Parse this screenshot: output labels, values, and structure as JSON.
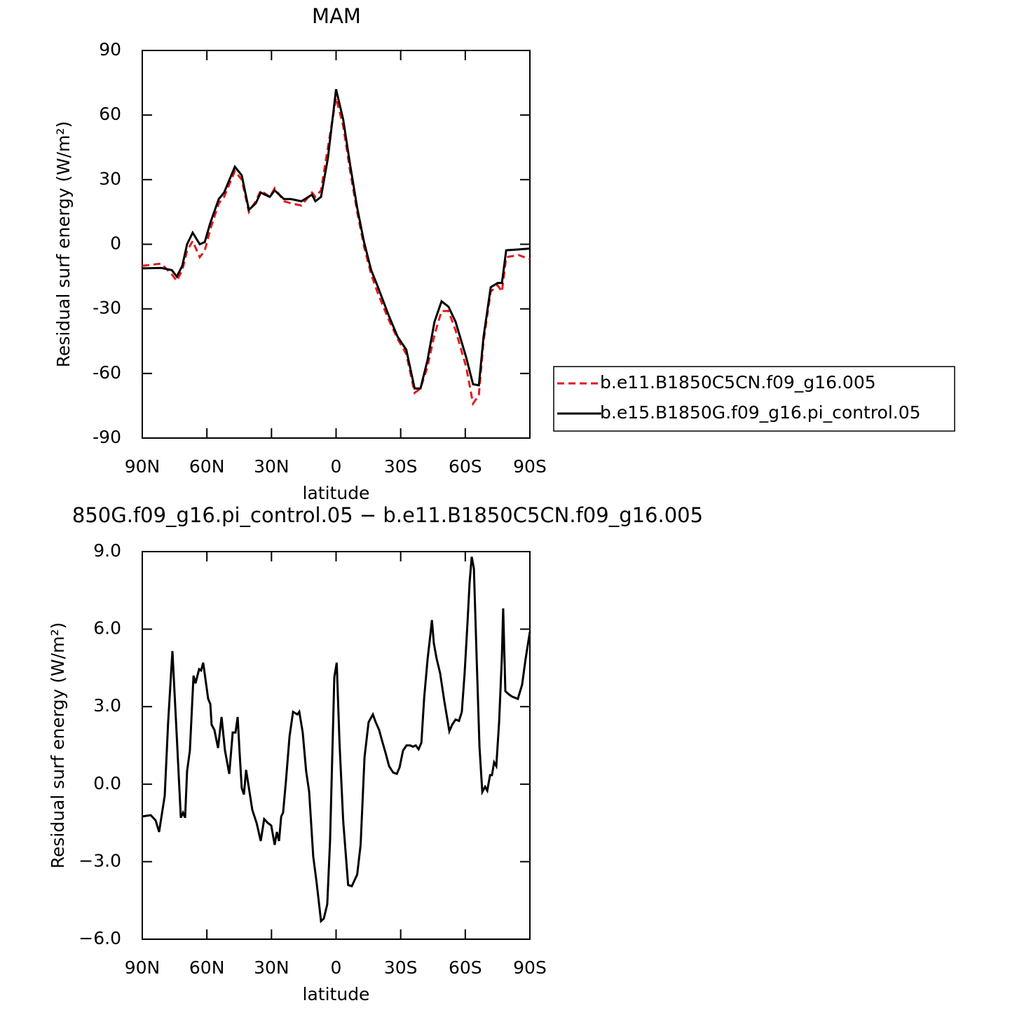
{
  "chart_data": [
    {
      "type": "line",
      "title": "MAM",
      "xlabel": "latitude",
      "ylabel": "Residual surf energy (W/m²)",
      "xlim": [
        90,
        -90
      ],
      "xticks": [
        {
          "value": 90,
          "label": "90N"
        },
        {
          "value": 60,
          "label": "60N"
        },
        {
          "value": 30,
          "label": "30N"
        },
        0,
        {
          "value": -30,
          "label": "30S"
        },
        {
          "value": -60,
          "label": "60S"
        },
        {
          "value": -90,
          "label": "90S"
        }
      ],
      "ylim": [
        -90,
        90
      ],
      "yticks": [
        -90,
        -60,
        -30,
        0,
        30,
        60,
        90
      ],
      "legend": "right",
      "x": [
        90,
        81.2,
        76.3,
        74,
        71.4,
        69.2,
        66.6,
        63.3,
        61,
        58.4,
        54.5,
        52,
        47,
        43.8,
        40.5,
        37.3,
        35,
        30.8,
        28.5,
        24.2,
        21,
        16.1,
        11.2,
        9.6,
        7,
        3.8,
        0,
        -3.3,
        -6.5,
        -9.8,
        -13,
        -16.3,
        -19.5,
        -24.4,
        -28.6,
        -32.6,
        -36.5,
        -39.2,
        -42.4,
        -45.7,
        -49,
        -52.2,
        -55.5,
        -60.4,
        -63.6,
        -66.3,
        -68.5,
        -71.8,
        -75,
        -77,
        -79,
        -84.8,
        -90
      ],
      "series": [
        {
          "name": "b.e11.B1850C5CN.f09_g16.005",
          "color": "#e41a1c",
          "line_style": "dashed",
          "values": [
            -10,
            -9,
            -14,
            -17,
            -12,
            -3,
            1.5,
            -6,
            -3,
            7,
            19,
            22,
            34,
            30,
            15,
            20,
            25,
            22,
            26,
            20,
            19,
            18,
            24,
            22,
            25,
            45,
            68,
            55,
            34,
            15,
            -1,
            -14,
            -23,
            -35,
            -44,
            -51,
            -69,
            -67,
            -57,
            -42,
            -31,
            -31,
            -40,
            -57,
            -74,
            -70,
            -45,
            -22,
            -19,
            -22,
            -6,
            -5,
            -7
          ]
        },
        {
          "name": "b.e15.B1850G.f09_g16.pi_control.05",
          "color": "#000000",
          "line_style": "solid",
          "values": [
            -11.2,
            -11,
            -12,
            -15,
            -10,
            0,
            5.4,
            0,
            1,
            10,
            21,
            24,
            36,
            32,
            16,
            19,
            24,
            22,
            25,
            21,
            21,
            20,
            23,
            20,
            22,
            40,
            72,
            58,
            37,
            17,
            1,
            -12,
            -20,
            -33,
            -43,
            -49,
            -67,
            -67,
            -54,
            -36,
            -26.5,
            -29,
            -36,
            -52.5,
            -65,
            -65.5,
            -43,
            -20,
            -18,
            -18,
            -2.8,
            -2.4,
            -2
          ]
        }
      ]
    },
    {
      "type": "line",
      "title": "850G.f09_g16.pi_control.05 − b.e11.B1850C5CN.f09_g16.005",
      "xlabel": "latitude",
      "ylabel": "Residual surf energy (W/m²)",
      "xlim": [
        90,
        -90
      ],
      "xticks": [
        {
          "value": 90,
          "label": "90N"
        },
        {
          "value": 60,
          "label": "60N"
        },
        {
          "value": 30,
          "label": "30N"
        },
        0,
        {
          "value": -30,
          "label": "30S"
        },
        {
          "value": -60,
          "label": "60S"
        },
        {
          "value": -90,
          "label": "90S"
        }
      ],
      "ylim": [
        -6,
        9
      ],
      "yticks": [
        {
          "value": -6,
          "label": "−6.0"
        },
        {
          "value": -3,
          "label": "−3.0"
        },
        {
          "value": 0,
          "label": "0.0"
        },
        {
          "value": 3,
          "label": "3.0"
        },
        {
          "value": 6,
          "label": "6.0"
        },
        {
          "value": 9,
          "label": "9.0"
        }
      ],
      "color": "#000000",
      "x": [
        90,
        86.1,
        83.8,
        82.2,
        79.6,
        78,
        76,
        74,
        72.1,
        71.1,
        70.1,
        69.2,
        67.9,
        66.2,
        65.3,
        63.6,
        62.7,
        61.7,
        59.4,
        58.4,
        57.8,
        56.5,
        54.8,
        53.2,
        51.6,
        49.6,
        48,
        46.7,
        45.7,
        44.8,
        43.8,
        42.8,
        41.8,
        40.2,
        38.9,
        36.9,
        35,
        33.4,
        31.7,
        30.1,
        28.5,
        27.5,
        26.5,
        25.5,
        24.6,
        23.3,
        21.6,
        20,
        18,
        17.1,
        15.5,
        13.9,
        12.5,
        10.6,
        9,
        7,
        5.7,
        4.1,
        2.8,
        0.8,
        -0.3,
        -1.6,
        -3.3,
        -5.6,
        -7.3,
        -9.8,
        -11.4,
        -13.2,
        -15.1,
        -17.1,
        -18.4,
        -20,
        -21.3,
        -23,
        -24.6,
        -26.5,
        -28.2,
        -29.5,
        -31.1,
        -32.7,
        -34.4,
        -35.7,
        -37,
        -38.3,
        -39.6,
        -40.9,
        -42.5,
        -43.8,
        -44.5,
        -45.4,
        -46.7,
        -48.3,
        -50.3,
        -52.6,
        -53.9,
        -55.5,
        -57.1,
        -58.4,
        -59.7,
        -61,
        -62,
        -63,
        -64,
        -65.3,
        -66.6,
        -67.9,
        -69.2,
        -70.2,
        -71.5,
        -72.4,
        -73.4,
        -74.4,
        -75.7,
        -77,
        -77.6,
        -78.6,
        -79.9,
        -81.5,
        -84.4,
        -86.4,
        -88,
        -90
      ],
      "values": [
        -1.25,
        -1.2,
        -1.4,
        -1.85,
        -0.45,
        2.4,
        5.15,
        1.85,
        -1.3,
        -1.1,
        -1.3,
        0.5,
        1.3,
        4.2,
        3.9,
        4.45,
        4.4,
        4.7,
        3.3,
        3.1,
        2.3,
        2.1,
        1.4,
        2.6,
        1.3,
        0.4,
        2,
        2,
        2.6,
        1.2,
        -0.15,
        -0.4,
        0.55,
        -0.3,
        -1,
        -1.5,
        -2.2,
        -1.35,
        -1.5,
        -1.6,
        -2.35,
        -1.85,
        -2.2,
        -1.25,
        -1.1,
        0.1,
        1.85,
        2.8,
        2.7,
        2.8,
        2,
        0.5,
        -0.3,
        -2.8,
        -3.85,
        -5.3,
        -5.2,
        -4.65,
        -2.2,
        4.15,
        4.7,
        1.6,
        -1.4,
        -3.9,
        -3.95,
        -3.5,
        -2.35,
        1.05,
        2.4,
        2.7,
        2.4,
        2.1,
        1.7,
        1.2,
        0.7,
        0.45,
        0.4,
        0.65,
        1.3,
        1.5,
        1.5,
        1.45,
        1.5,
        1.35,
        1.6,
        3.35,
        4.85,
        5.8,
        6.35,
        5.45,
        4.85,
        4.3,
        3.2,
        2.05,
        2.3,
        2.5,
        2.45,
        2.8,
        4.3,
        6.2,
        7.8,
        8.8,
        8.35,
        4.85,
        1.45,
        -0.3,
        -0.1,
        -0.25,
        0.35,
        0.35,
        0.85,
        0.7,
        2.4,
        4.95,
        6.8,
        3.6,
        3.5,
        3.4,
        3.3,
        3.85,
        4.85,
        5.9
      ]
    }
  ]
}
